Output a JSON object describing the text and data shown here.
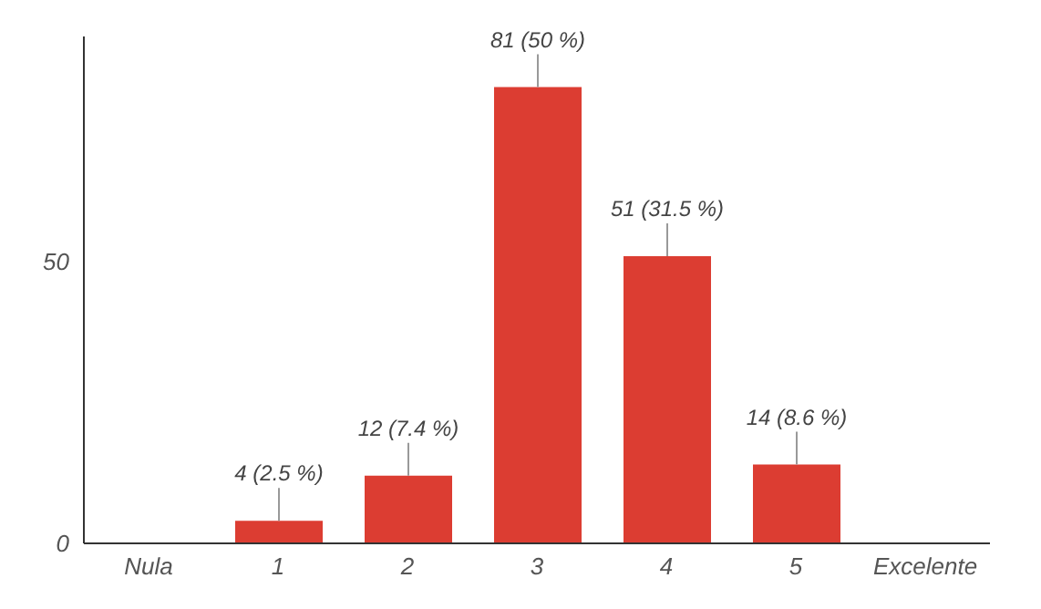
{
  "chart_data": {
    "type": "bar",
    "categories": [
      "Nula",
      "1",
      "2",
      "3",
      "4",
      "5",
      "Excelente"
    ],
    "values": [
      null,
      4,
      12,
      81,
      51,
      14,
      null
    ],
    "value_labels": [
      null,
      "4 (2.5 %)",
      "12 (7.4 %)",
      "81 (50 %)",
      "51 (31.5 %)",
      "14 (8.6 %)",
      null
    ],
    "color": "#dc3d32",
    "ylim": [
      0,
      90
    ],
    "yticks": [
      0,
      50
    ],
    "grid": false,
    "legend": false
  }
}
